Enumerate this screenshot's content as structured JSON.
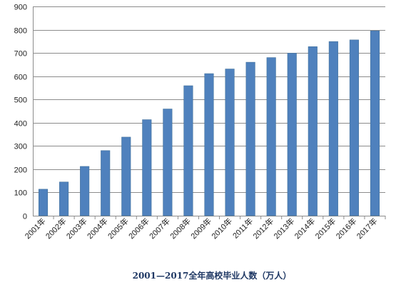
{
  "chart_data": {
    "type": "bar",
    "title": "2001—2017全年高校毕业人数（万人）",
    "categories": [
      "2001年",
      "2002年",
      "2003年",
      "2004年",
      "2005年",
      "2006年",
      "2007年",
      "2008年",
      "2009年",
      "2010年",
      "2011年",
      "2012年",
      "2013年",
      "2014年",
      "2015年",
      "2016年",
      "2017年"
    ],
    "values": [
      114,
      145,
      212,
      280,
      338,
      413,
      459,
      559,
      611,
      631,
      660,
      680,
      699,
      727,
      749,
      756,
      795
    ],
    "xlabel": "",
    "ylabel": "",
    "ylim": [
      0,
      900
    ],
    "yticks": [
      0,
      100,
      200,
      300,
      400,
      500,
      600,
      700,
      800,
      900
    ],
    "grid": true,
    "legend": "none",
    "colors": {
      "bar": "#4f81bd",
      "bar_edge": "#41719c",
      "grid": "#8c8c8c",
      "title": "#1f3864"
    }
  }
}
